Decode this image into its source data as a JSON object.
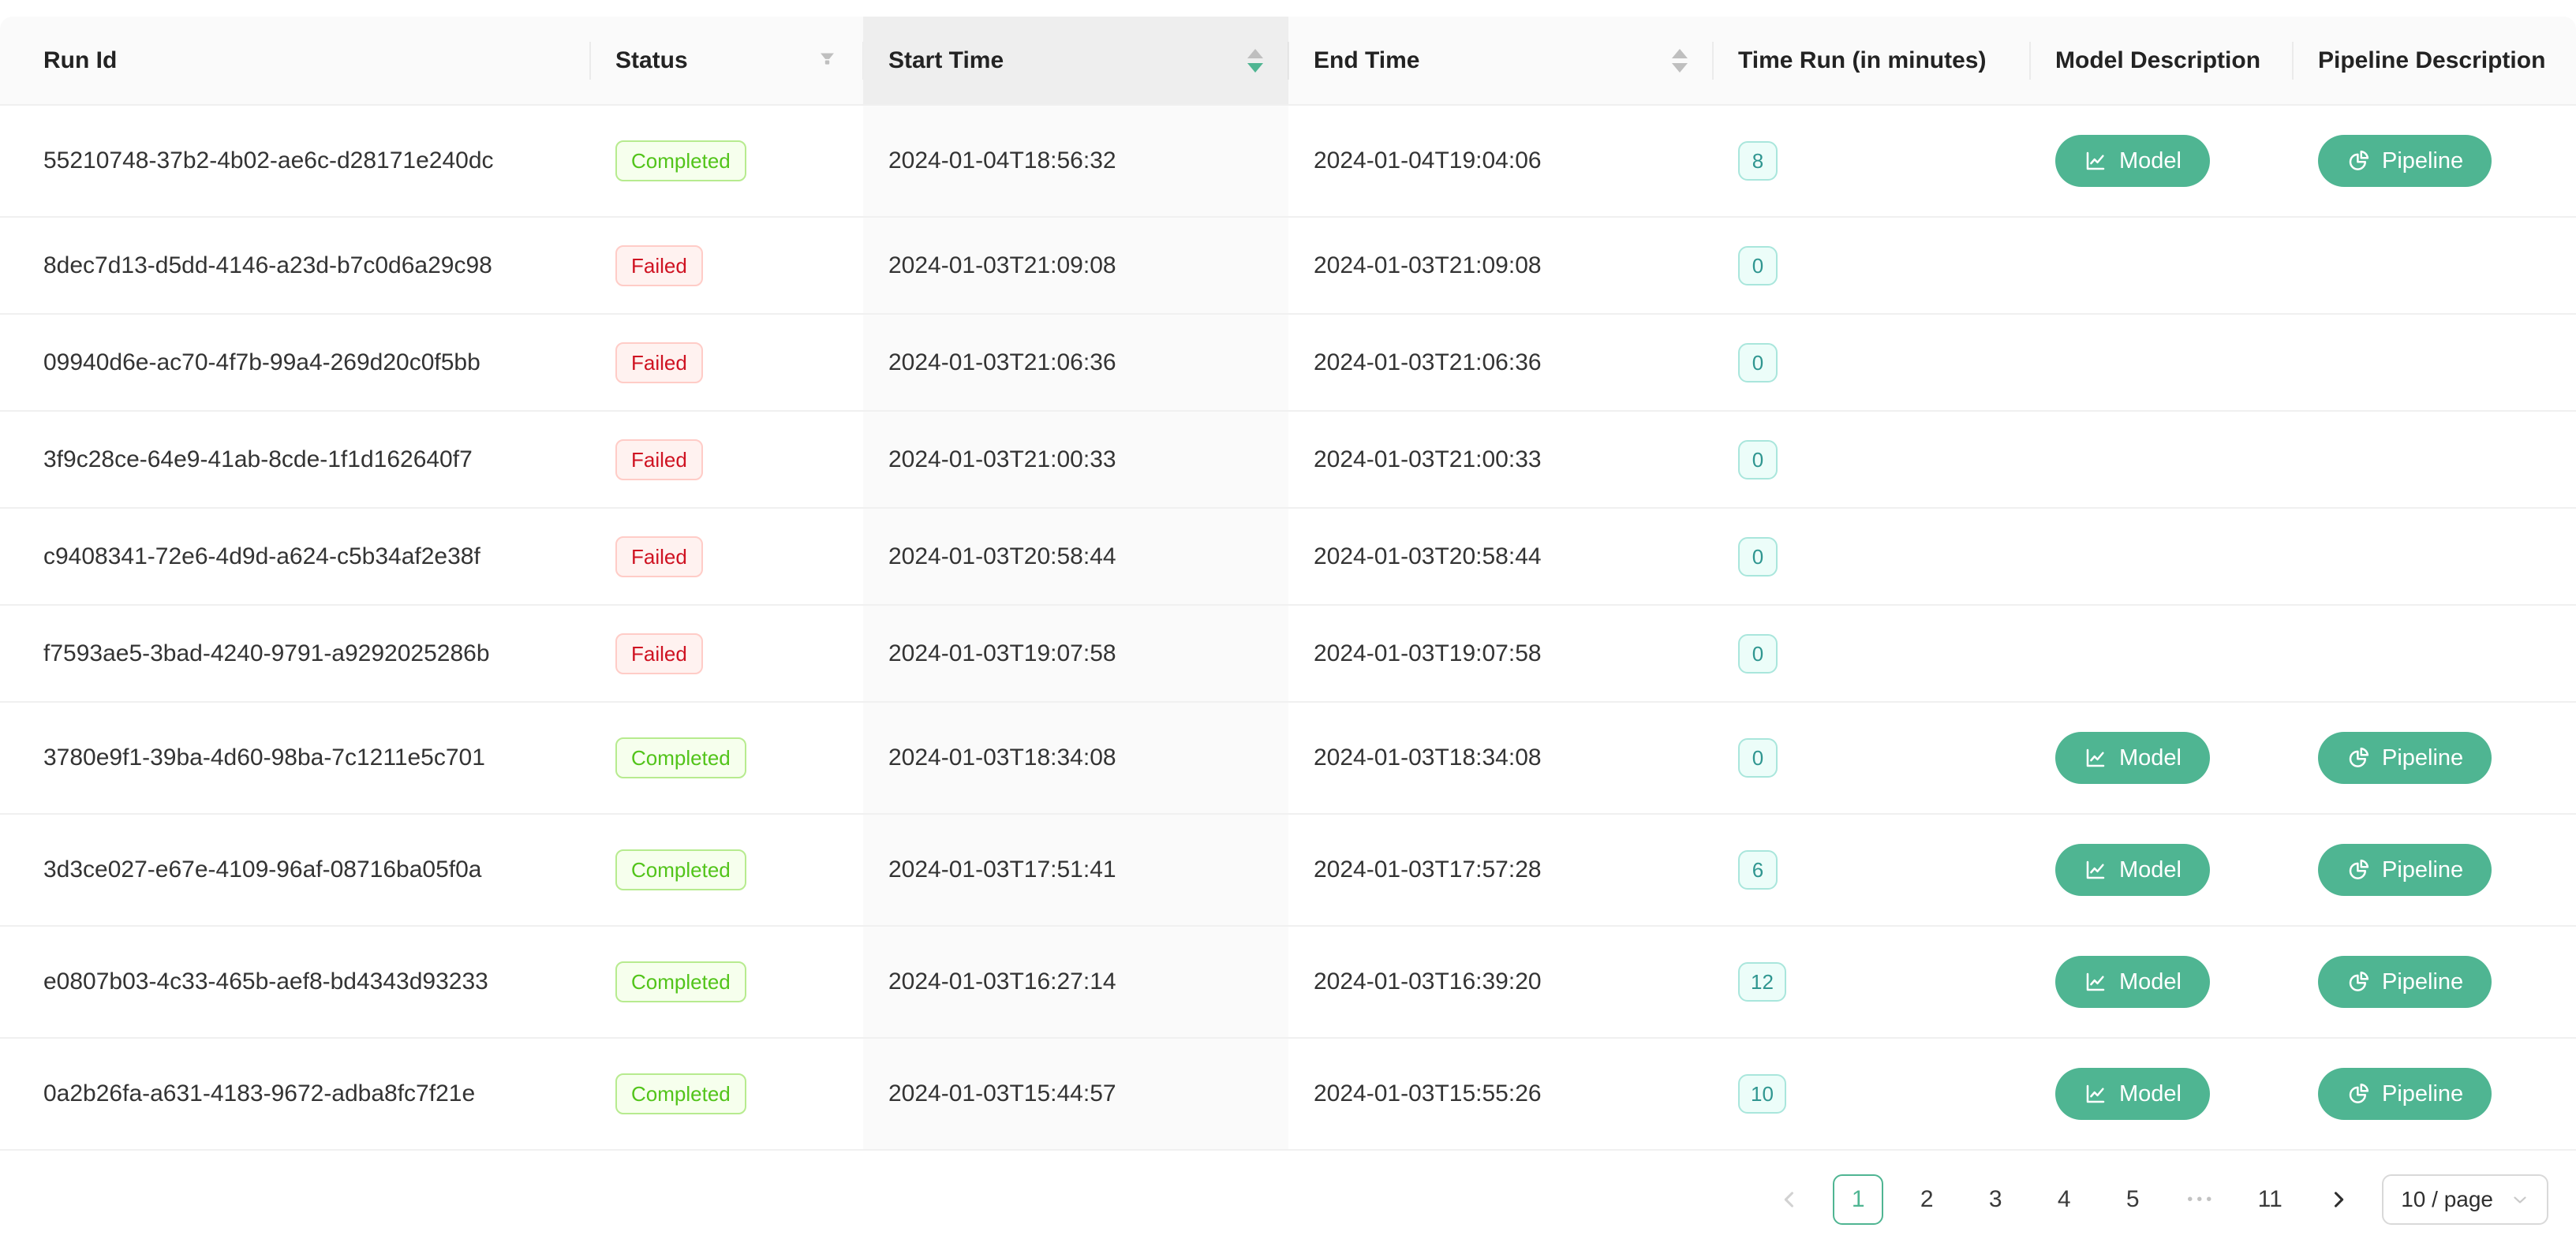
{
  "table": {
    "columns": [
      {
        "label": "Run Id"
      },
      {
        "label": "Status",
        "has_filter": true
      },
      {
        "label": "Start Time",
        "sortable": true,
        "sort_active": "descending"
      },
      {
        "label": "End Time",
        "sortable": true,
        "sort_active": null
      },
      {
        "label": "Time Run (in minutes)"
      },
      {
        "label": "Model Description"
      },
      {
        "label": "Pipeline Description"
      }
    ],
    "action_buttons": {
      "model_label": "Model",
      "pipeline_label": "Pipeline"
    },
    "rows": [
      {
        "run_id": "55210748-37b2-4b02-ae6c-d28171e240dc",
        "status": "Completed",
        "start_time": "2024-01-04T18:56:32",
        "end_time": "2024-01-04T19:04:06",
        "time_run": "8",
        "has_actions": true
      },
      {
        "run_id": "8dec7d13-d5dd-4146-a23d-b7c0d6a29c98",
        "status": "Failed",
        "start_time": "2024-01-03T21:09:08",
        "end_time": "2024-01-03T21:09:08",
        "time_run": "0",
        "has_actions": false
      },
      {
        "run_id": "09940d6e-ac70-4f7b-99a4-269d20c0f5bb",
        "status": "Failed",
        "start_time": "2024-01-03T21:06:36",
        "end_time": "2024-01-03T21:06:36",
        "time_run": "0",
        "has_actions": false
      },
      {
        "run_id": "3f9c28ce-64e9-41ab-8cde-1f1d162640f7",
        "status": "Failed",
        "start_time": "2024-01-03T21:00:33",
        "end_time": "2024-01-03T21:00:33",
        "time_run": "0",
        "has_actions": false
      },
      {
        "run_id": "c9408341-72e6-4d9d-a624-c5b34af2e38f",
        "status": "Failed",
        "start_time": "2024-01-03T20:58:44",
        "end_time": "2024-01-03T20:58:44",
        "time_run": "0",
        "has_actions": false
      },
      {
        "run_id": "f7593ae5-3bad-4240-9791-a9292025286b",
        "status": "Failed",
        "start_time": "2024-01-03T19:07:58",
        "end_time": "2024-01-03T19:07:58",
        "time_run": "0",
        "has_actions": false
      },
      {
        "run_id": "3780e9f1-39ba-4d60-98ba-7c1211e5c701",
        "status": "Completed",
        "start_time": "2024-01-03T18:34:08",
        "end_time": "2024-01-03T18:34:08",
        "time_run": "0",
        "has_actions": true
      },
      {
        "run_id": "3d3ce027-e67e-4109-96af-08716ba05f0a",
        "status": "Completed",
        "start_time": "2024-01-03T17:51:41",
        "end_time": "2024-01-03T17:57:28",
        "time_run": "6",
        "has_actions": true
      },
      {
        "run_id": "e0807b03-4c33-465b-aef8-bd4343d93233",
        "status": "Completed",
        "start_time": "2024-01-03T16:27:14",
        "end_time": "2024-01-03T16:39:20",
        "time_run": "12",
        "has_actions": true
      },
      {
        "run_id": "0a2b26fa-a631-4183-9672-adba8fc7f21e",
        "status": "Completed",
        "start_time": "2024-01-03T15:44:57",
        "end_time": "2024-01-03T15:55:26",
        "time_run": "10",
        "has_actions": true
      }
    ]
  },
  "pagination": {
    "prev_enabled": false,
    "next_enabled": true,
    "active_page": "1",
    "items": [
      "1",
      "2",
      "3",
      "4",
      "5",
      "•••",
      "11"
    ],
    "page_size_label": "10 / page"
  },
  "colors": {
    "primary": "#4fb592",
    "success_text": "#52c41a",
    "success_border": "#b7eb8f",
    "success_bg": "#f6ffed",
    "error_text": "#cf1322",
    "error_border": "#ffccc7",
    "error_bg": "#fff2f0",
    "timerun_text": "#2f9690",
    "timerun_border": "#a9e6dc",
    "timerun_bg": "#ecfdf9",
    "header_bg": "#fafafa",
    "sorted_header_bg": "#eeeeee",
    "sorted_col_bg": "#fafafa",
    "row_border": "#f0f0f0",
    "icon_gray": "#bfbfbf"
  },
  "icons": {
    "filter": "filter-icon",
    "sort_up": "caret-up-icon",
    "sort_down": "caret-down-icon",
    "model": "line-chart-icon",
    "pipeline": "pie-chart-icon",
    "prev": "left-chevron-icon",
    "next": "right-chevron-icon",
    "select_open": "chevron-down-icon"
  }
}
